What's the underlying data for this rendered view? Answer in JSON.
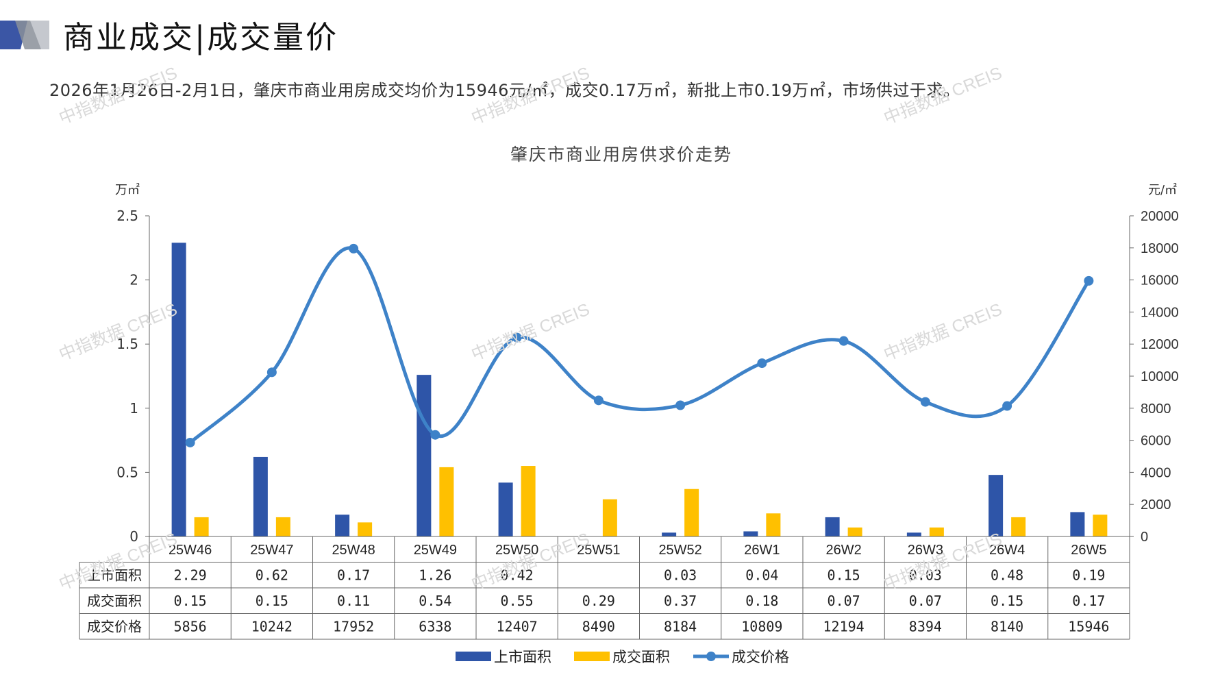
{
  "header": {
    "title": "商业成交|成交量价",
    "summary": "2026年1月26日-2月1日，肇庆市商业用房成交均价为15946元/㎡，成交0.17万㎡，新批上市0.19万㎡，市场供过于求。"
  },
  "watermark": "中指数据 CREIS",
  "colors": {
    "supply": "#2E55A8",
    "deal": "#FFC000",
    "price": "#3E82C8",
    "deco_blue": "#3B56A5",
    "deco_grey": "#8A8F99"
  },
  "chart_data": {
    "type": "bar",
    "title": "肇庆市商业用房供求价走势",
    "categories": [
      "25W46",
      "25W47",
      "25W48",
      "25W49",
      "25W50",
      "25W51",
      "25W52",
      "26W1",
      "26W2",
      "26W3",
      "26W4",
      "26W5"
    ],
    "y_left_unit": "万㎡",
    "y_right_unit": "元/㎡",
    "y_left_ticks": [
      "0",
      "0.5",
      "1",
      "1.5",
      "2",
      "2.5"
    ],
    "y_right_ticks": [
      "0",
      "2000",
      "4000",
      "6000",
      "8000",
      "10000",
      "12000",
      "14000",
      "16000",
      "18000",
      "20000"
    ],
    "ylim_left": [
      0,
      2.5
    ],
    "ylim_right": [
      0,
      20000
    ],
    "series": [
      {
        "name": "上市面积",
        "type": "bar",
        "axis": "left",
        "values": [
          2.29,
          0.62,
          0.17,
          1.26,
          0.42,
          null,
          0.03,
          0.04,
          0.15,
          0.03,
          0.48,
          0.19
        ],
        "labels": [
          "2.29",
          "0.62",
          "0.17",
          "1.26",
          "0.42",
          "",
          "0.03",
          "0.04",
          "0.15",
          "0.03",
          "0.48",
          "0.19"
        ]
      },
      {
        "name": "成交面积",
        "type": "bar",
        "axis": "left",
        "values": [
          0.15,
          0.15,
          0.11,
          0.54,
          0.55,
          0.29,
          0.37,
          0.18,
          0.07,
          0.07,
          0.15,
          0.17
        ],
        "labels": [
          "0.15",
          "0.15",
          "0.11",
          "0.54",
          "0.55",
          "0.29",
          "0.37",
          "0.18",
          "0.07",
          "0.07",
          "0.15",
          "0.17"
        ]
      },
      {
        "name": "成交价格",
        "type": "line",
        "axis": "right",
        "values": [
          5856,
          10242,
          17952,
          6338,
          12407,
          8490,
          8184,
          10809,
          12194,
          8394,
          8140,
          15946
        ],
        "labels": [
          "5856",
          "10242",
          "17952",
          "6338",
          "12407",
          "8490",
          "8184",
          "10809",
          "12194",
          "8394",
          "8140",
          "15946"
        ]
      }
    ],
    "legend_position": "bottom",
    "data_table": true
  }
}
